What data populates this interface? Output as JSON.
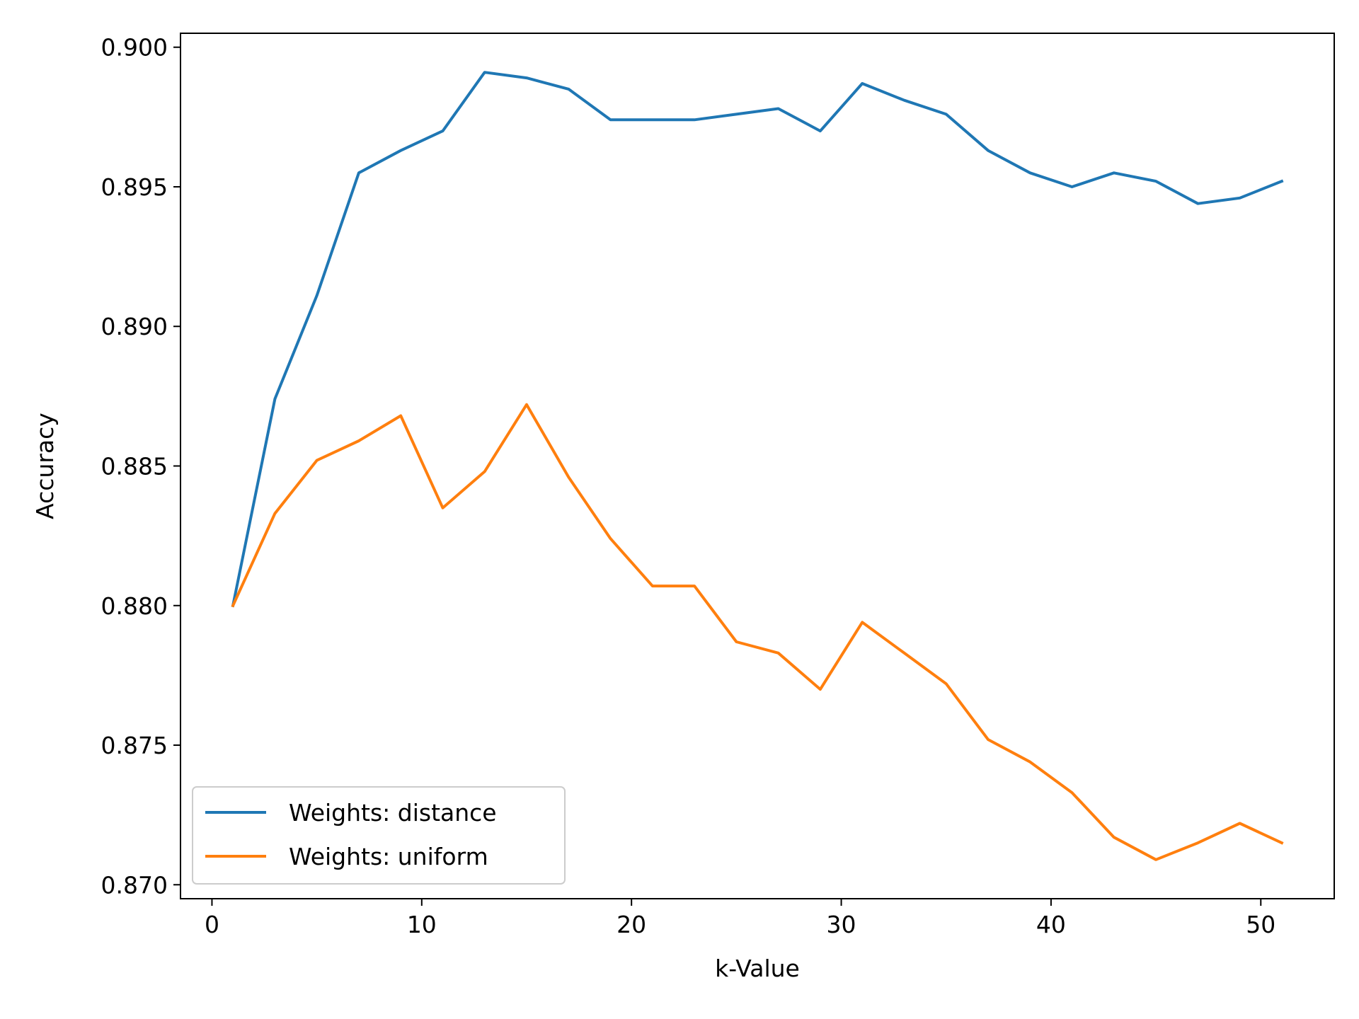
{
  "chart_data": {
    "type": "line",
    "title": "",
    "xlabel": "k-Value",
    "ylabel": "Accuracy",
    "xlim": [
      -1.5,
      53.5
    ],
    "ylim": [
      0.8695,
      0.9005
    ],
    "xticks": [
      0,
      10,
      20,
      30,
      40,
      50
    ],
    "xtick_labels": [
      "0",
      "10",
      "20",
      "30",
      "40",
      "50"
    ],
    "yticks": [
      0.87,
      0.875,
      0.88,
      0.885,
      0.89,
      0.895,
      0.9
    ],
    "ytick_labels": [
      "0.870",
      "0.875",
      "0.880",
      "0.885",
      "0.890",
      "0.895",
      "0.900"
    ],
    "grid": false,
    "legend_position": "lower-left",
    "x": [
      1,
      3,
      5,
      7,
      9,
      11,
      13,
      15,
      17,
      19,
      21,
      23,
      25,
      27,
      29,
      31,
      33,
      35,
      37,
      39,
      41,
      43,
      45,
      47,
      49,
      51
    ],
    "series": [
      {
        "name": "Weights: distance",
        "color": "#1f77b4",
        "values": [
          0.88,
          0.8874,
          0.8911,
          0.8955,
          0.8963,
          0.897,
          0.8991,
          0.8989,
          0.8985,
          0.8974,
          0.8974,
          0.8974,
          0.8976,
          0.8978,
          0.897,
          0.8987,
          0.8981,
          0.8976,
          0.8963,
          0.8955,
          0.895,
          0.8955,
          0.8952,
          0.8944,
          0.8946,
          0.8952
        ]
      },
      {
        "name": "Weights: uniform",
        "color": "#ff7f0e",
        "values": [
          0.88,
          0.8833,
          0.8852,
          0.8859,
          0.8868,
          0.8835,
          0.8848,
          0.8872,
          0.8846,
          0.8824,
          0.8807,
          0.8807,
          0.8787,
          0.8783,
          0.877,
          0.8794,
          0.8783,
          0.8772,
          0.8752,
          0.8744,
          0.8733,
          0.8717,
          0.8709,
          0.8715,
          0.8722,
          0.8715
        ]
      }
    ]
  }
}
